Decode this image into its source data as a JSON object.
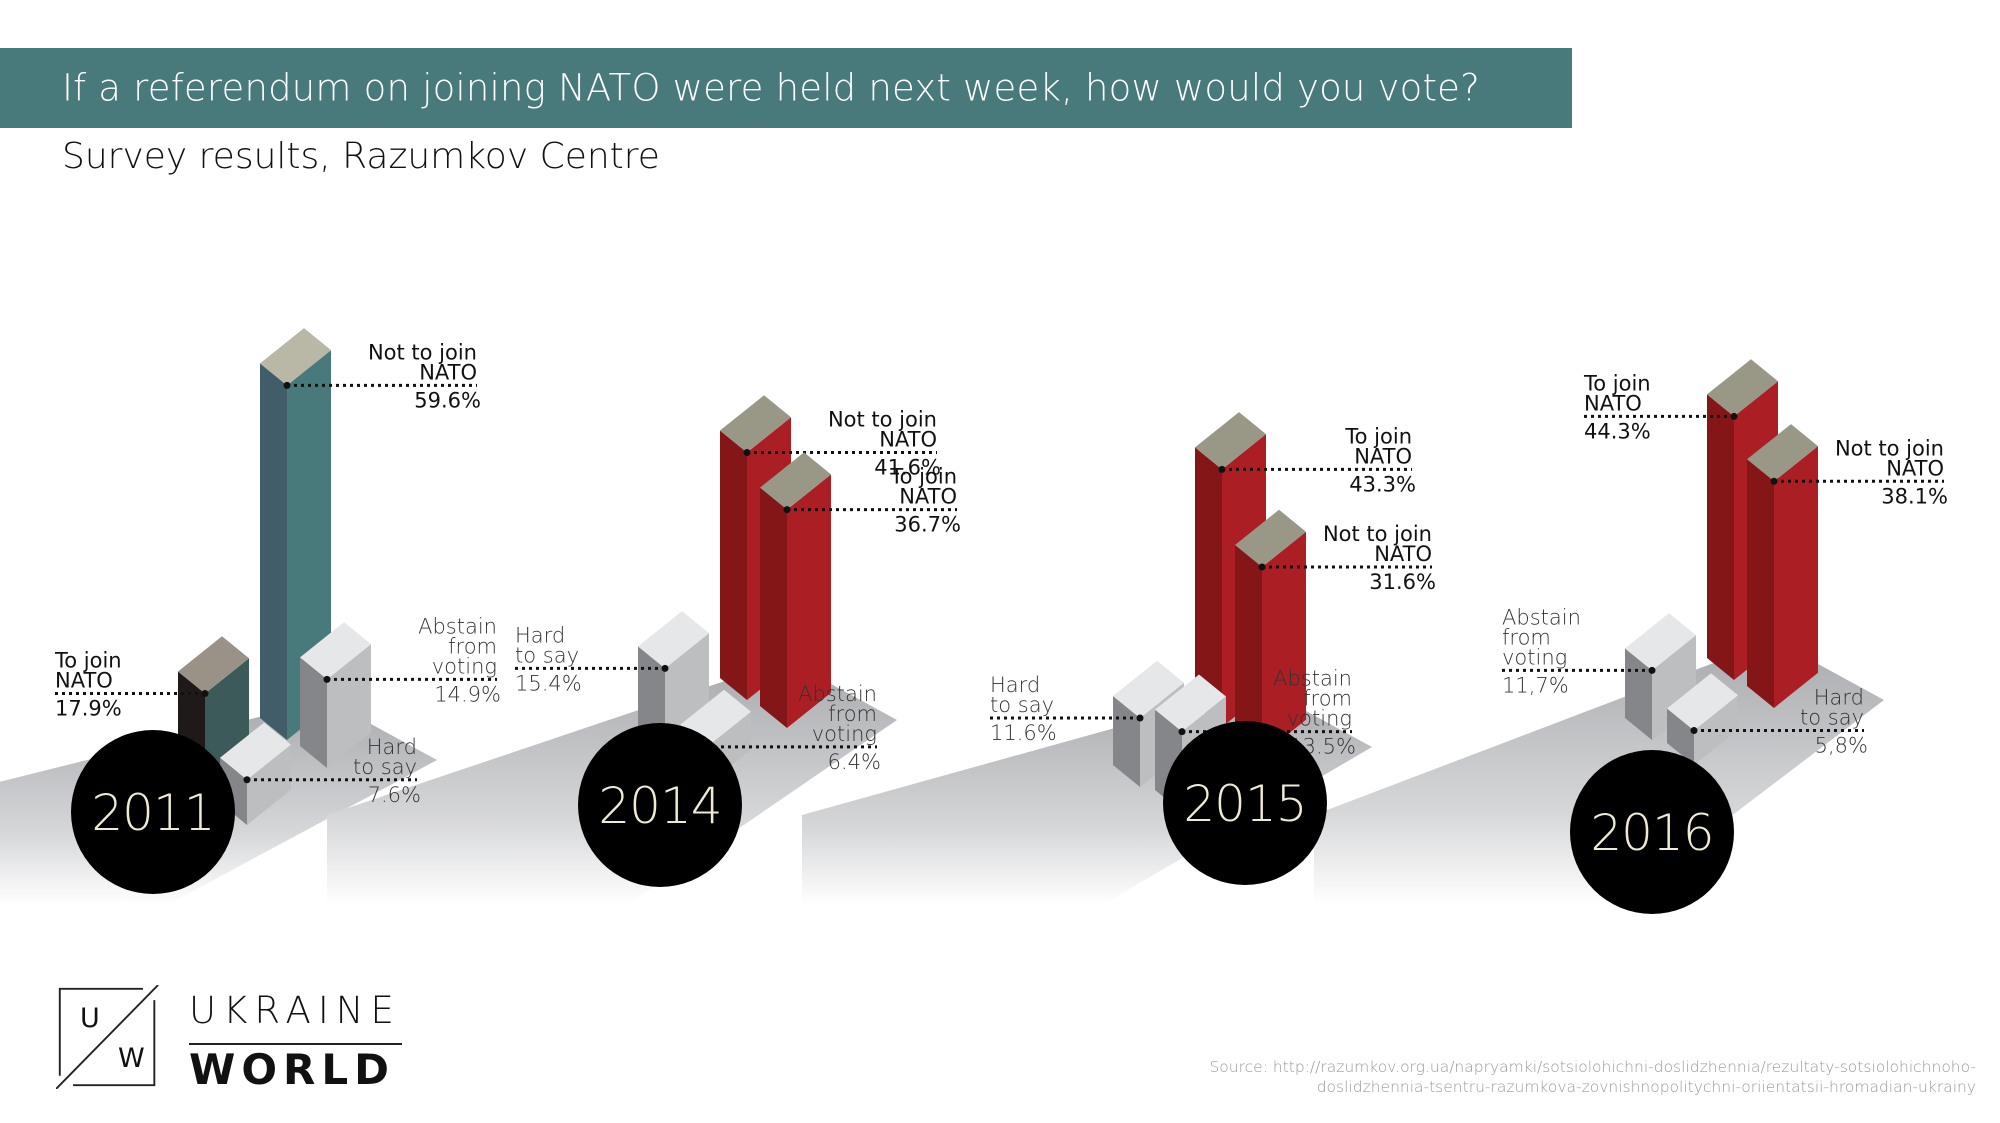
{
  "header": {
    "title": "If a referendum on joining NATO were held next week, how would you vote?",
    "subtitle": "Survey results, Razumkov Centre"
  },
  "colors": {
    "title_bar": "#487a7c",
    "teal_front": "#487a7c",
    "teal_side": "#405d69",
    "teal_top": "#b9b8a7",
    "teal_dark_front": "#3d5a5a",
    "teal_dark_side": "#1f1a19",
    "teal_dark_top": "#9a9286",
    "red_front": "#ab1e24",
    "red_side": "#851618",
    "red_top": "#999886",
    "grey_front": "#bdbec0",
    "grey_side": "#85868a",
    "grey_top": "#e6e7e8",
    "year_badge": "#000000",
    "year_text": "#efead6"
  },
  "chart_data": {
    "type": "bar",
    "variant": "isometric-3d-grouped",
    "title": "If a referendum on joining NATO were held next week, how would you vote?",
    "subtitle": "Survey results, Razumkov Centre",
    "categories": [
      "2011",
      "2014",
      "2015",
      "2016"
    ],
    "unit": "%",
    "series": [
      {
        "name": "To join NATO",
        "values": [
          17.9,
          36.7,
          43.3,
          44.3
        ],
        "labels": [
          "17.9%",
          "36.7%",
          "43.3%",
          "44.3%"
        ]
      },
      {
        "name": "Not to join NATO",
        "values": [
          59.6,
          41.6,
          31.6,
          38.1
        ],
        "labels": [
          "59.6%",
          "41.6%",
          "31.6%",
          "38.1%"
        ]
      },
      {
        "name": "Abstain from voting",
        "values": [
          14.9,
          6.4,
          13.5,
          11.7
        ],
        "labels": [
          "14.9%",
          "6.4%",
          "13.5%",
          "11,7%"
        ]
      },
      {
        "name": "Hard to say",
        "values": [
          7.6,
          15.4,
          11.6,
          5.8
        ],
        "labels": [
          "7.6%",
          "15.4%",
          "11.6%",
          "5,8%"
        ]
      }
    ],
    "groups": [
      {
        "year": "2011",
        "bars": [
          {
            "slot": "back-left",
            "name_lines": [
              "To join",
              "NATO"
            ],
            "value": 17.9,
            "label": "17.9%",
            "palette": "teal_dark",
            "label_side": "left",
            "bold": true
          },
          {
            "slot": "back-right",
            "name_lines": [
              "Not to join",
              "NATO"
            ],
            "value": 59.6,
            "label": "59.6%",
            "palette": "teal",
            "label_side": "right",
            "bold": true
          },
          {
            "slot": "front-right",
            "name_lines": [
              "Abstain",
              "from",
              "voting"
            ],
            "value": 14.9,
            "label": "14.9%",
            "palette": "grey",
            "label_side": "right",
            "bold": false
          },
          {
            "slot": "front-left",
            "name_lines": [
              "Hard",
              "to say"
            ],
            "value": 7.6,
            "label": "7.6%",
            "palette": "grey",
            "label_side": "right",
            "bold": false
          }
        ]
      },
      {
        "year": "2014",
        "bars": [
          {
            "slot": "back-left",
            "name_lines": [
              "Hard",
              "to say"
            ],
            "value": 15.4,
            "label": "15.4%",
            "palette": "grey",
            "label_side": "left",
            "bold": false
          },
          {
            "slot": "back-right",
            "name_lines": [
              "Not to join",
              "NATO"
            ],
            "value": 41.6,
            "label": "41.6%",
            "palette": "red",
            "label_side": "right",
            "bold": true
          },
          {
            "slot": "front-right",
            "name_lines": [
              "To join",
              "NATO"
            ],
            "value": 36.7,
            "label": "36.7%",
            "palette": "red",
            "label_side": "right",
            "bold": true
          },
          {
            "slot": "front-left",
            "name_lines": [
              "Abstain",
              "from",
              "voting"
            ],
            "value": 6.4,
            "label": "6.4%",
            "palette": "grey",
            "label_side": "right",
            "bold": false
          }
        ]
      },
      {
        "year": "2015",
        "bars": [
          {
            "slot": "back-left",
            "name_lines": [
              "Hard",
              "to say"
            ],
            "value": 11.6,
            "label": "11.6%",
            "palette": "grey",
            "label_side": "left",
            "bold": false
          },
          {
            "slot": "back-right",
            "name_lines": [
              "To join",
              "NATO"
            ],
            "value": 43.3,
            "label": "43.3%",
            "palette": "red",
            "label_side": "right",
            "bold": true
          },
          {
            "slot": "front-right",
            "name_lines": [
              "Not to join",
              "NATO"
            ],
            "value": 31.6,
            "label": "31.6%",
            "palette": "red",
            "label_side": "right",
            "bold": true
          },
          {
            "slot": "front-left",
            "name_lines": [
              "Abstain",
              "from",
              "voting"
            ],
            "value": 13.5,
            "label": "13.5%",
            "palette": "grey",
            "label_side": "right",
            "bold": false
          }
        ]
      },
      {
        "year": "2016",
        "bars": [
          {
            "slot": "back-left",
            "name_lines": [
              "Abstain",
              "from",
              "voting"
            ],
            "value": 11.7,
            "label": "11,7%",
            "palette": "grey",
            "label_side": "left",
            "bold": false
          },
          {
            "slot": "back-right",
            "name_lines": [
              "To join",
              "NATO"
            ],
            "value": 44.3,
            "label": "44.3%",
            "palette": "red",
            "label_side": "left",
            "bold": true
          },
          {
            "slot": "front-right",
            "name_lines": [
              "Not to join",
              "NATO"
            ],
            "value": 38.1,
            "label": "38.1%",
            "palette": "red",
            "label_side": "right",
            "bold": true
          },
          {
            "slot": "front-left",
            "name_lines": [
              "Hard",
              "to say"
            ],
            "value": 5.8,
            "label": "5,8%",
            "palette": "grey",
            "label_side": "right",
            "bold": false
          }
        ]
      }
    ]
  },
  "logo": {
    "letter_top": "U",
    "letter_bottom": "W",
    "word_top": "UKRAINE",
    "word_bottom": "WORLD"
  },
  "source": {
    "line1": "Source: http://razumkov.org.ua/napryamki/sotsiolohichni-doslidzhennia/rezultaty-sotsiolohichnoho-",
    "line2": "doslidzhennia-tsentru-razumkova-zovnishnopolitychni-oriientatsii-hromadian-ukrainy"
  }
}
